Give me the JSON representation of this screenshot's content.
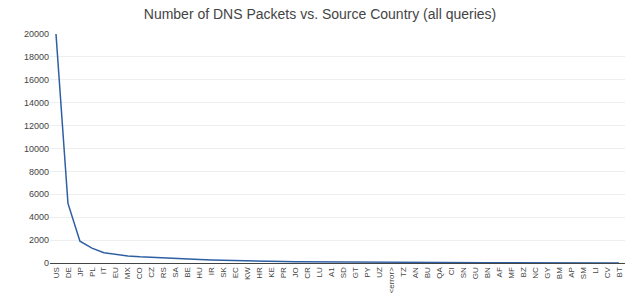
{
  "chart_data": {
    "type": "line",
    "title": "Number of DNS Packets vs. Source Country (all queries)",
    "categories": [
      "US",
      "DE",
      "JP",
      "PL",
      "IT",
      "EU",
      "MX",
      "CO",
      "CZ",
      "RS",
      "SA",
      "BE",
      "HU",
      "IR",
      "SK",
      "EC",
      "KW",
      "HR",
      "KE",
      "PR",
      "JO",
      "CR",
      "LU",
      "A1",
      "SD",
      "GT",
      "PY",
      "UZ",
      "<error>",
      "TZ",
      "AN",
      "BU",
      "QA",
      "CI",
      "SN",
      "GU",
      "BN",
      "AF",
      "MF",
      "BZ",
      "NC",
      "GY",
      "BM",
      "AP",
      "SM",
      "LI",
      "CV",
      "BT"
    ],
    "values": [
      20000,
      5200,
      1900,
      1300,
      900,
      750,
      620,
      540,
      480,
      420,
      380,
      340,
      300,
      260,
      230,
      200,
      180,
      160,
      145,
      130,
      120,
      110,
      100,
      90,
      82,
      75,
      68,
      62,
      55,
      50,
      45,
      42,
      38,
      35,
      32,
      29,
      27,
      25,
      22,
      20,
      18,
      17,
      15,
      14,
      12,
      11,
      10,
      9
    ],
    "color": "#2e5fa3",
    "ylim": [
      0,
      20000
    ],
    "yticks": [
      0,
      2000,
      4000,
      6000,
      8000,
      10000,
      12000,
      14000,
      16000,
      18000,
      20000
    ],
    "grid": true
  }
}
